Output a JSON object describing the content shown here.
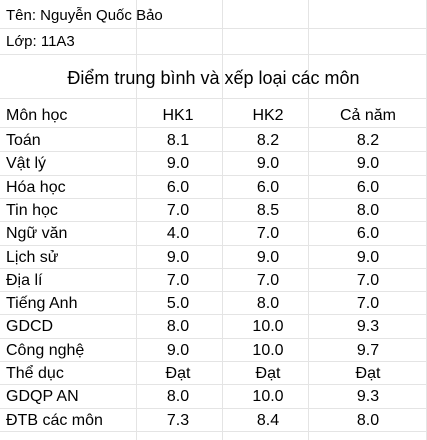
{
  "student": {
    "name_label": "Tên: Nguyễn Quốc Bảo",
    "class_label": "Lớp: 11A3"
  },
  "title": "Điểm trung bình và xếp loại các môn",
  "table": {
    "headers": [
      "Môn học",
      "HK1",
      "HK2",
      "Cả năm"
    ],
    "rows": [
      [
        "Toán",
        "8.1",
        "8.2",
        "8.2"
      ],
      [
        "Vật lý",
        "9.0",
        "9.0",
        "9.0"
      ],
      [
        "Hóa học",
        "6.0",
        "6.0",
        "6.0"
      ],
      [
        "Tin học",
        "7.0",
        "8.5",
        "8.0"
      ],
      [
        "Ngữ văn",
        "4.0",
        "7.0",
        "6.0"
      ],
      [
        "Lịch sử",
        "9.0",
        "9.0",
        "9.0"
      ],
      [
        "Địa lí",
        "7.0",
        "7.0",
        "7.0"
      ],
      [
        "Tiếng Anh",
        "5.0",
        "8.0",
        "7.0"
      ],
      [
        "GDCD",
        "8.0",
        "10.0",
        "9.3"
      ],
      [
        "Công nghệ",
        "9.0",
        "10.0",
        "9.7"
      ],
      [
        "Thể dục",
        "Đạt",
        "Đạt",
        "Đạt"
      ],
      [
        "GDQP AN",
        "8.0",
        "10.0",
        "9.3"
      ],
      [
        "ĐTB các môn",
        "7.3",
        "8.4",
        "8.0"
      ]
    ]
  }
}
